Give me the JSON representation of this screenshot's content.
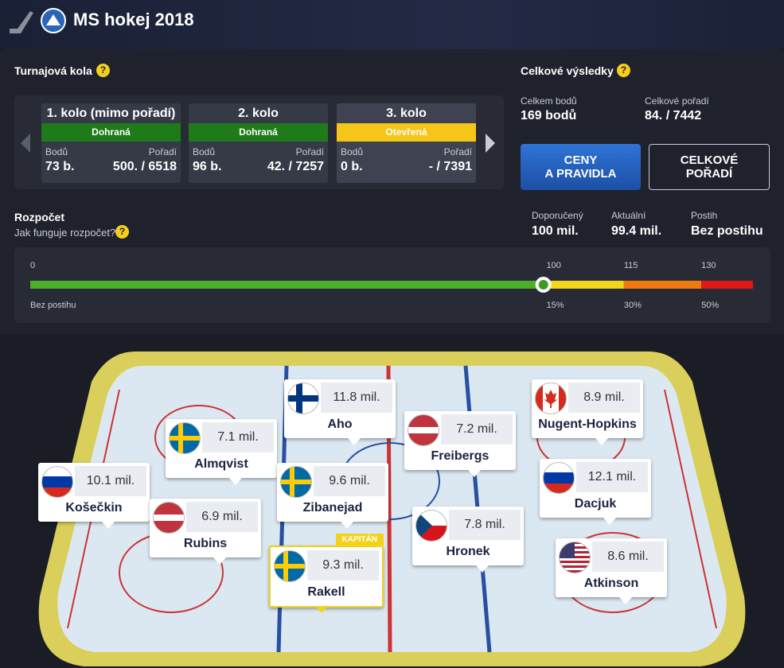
{
  "header": {
    "title": "MS hokej 2018"
  },
  "rounds": {
    "title": "Turnajová kola",
    "help": "?",
    "items": [
      {
        "name": "1. kolo (mimo pořadí)",
        "status": "Dohraná",
        "color": "#1f7a1a",
        "points_label": "Bodů",
        "points": "73 b.",
        "rank_label": "Pořadí",
        "rank": "500. / 6518"
      },
      {
        "name": "2. kolo",
        "status": "Dohraná",
        "color": "#1f7a1a",
        "points_label": "Bodů",
        "points": "96 b.",
        "rank_label": "Pořadí",
        "rank": "42. / 7257"
      },
      {
        "name": "3. kolo",
        "status": "Otevřená",
        "color": "#f5c518",
        "points_label": "Bodů",
        "points": "0 b.",
        "rank_label": "Pořadí",
        "rank": "- / 7391"
      }
    ]
  },
  "results": {
    "title": "Celkové výsledky",
    "help": "?",
    "points_label": "Celkem bodů",
    "points": "169 bodů",
    "rank_label": "Celkové pořadí",
    "rank": "84. / 7442",
    "buttons": [
      [
        "CENY",
        "A PRAVIDLA"
      ],
      [
        "CELKOVÉ",
        "POŘADÍ"
      ]
    ]
  },
  "budget": {
    "title": "Rozpočet",
    "help_text": "Jak funguje rozpočet?",
    "help": "?",
    "stats": [
      {
        "label": "Doporučený",
        "value": "100 mil."
      },
      {
        "label": "Aktuální",
        "value": "99.4 mil."
      },
      {
        "label": "Postih",
        "value": "Bez postihu"
      }
    ],
    "scale": {
      "lim": [
        0,
        140
      ],
      "ticks": [
        0,
        100,
        115,
        130
      ],
      "tick_notes": [
        "Bez postihu",
        "15%",
        "30%",
        "50%"
      ],
      "colors": [
        "#4caf2a",
        "#f2d51c",
        "#f07a10",
        "#e01818"
      ],
      "marker": 99.4
    }
  },
  "lineup": {
    "players": [
      {
        "name": "Aho",
        "price": "11.8 mil."
      },
      {
        "name": "Almqvist",
        "price": "7.1 mil."
      },
      {
        "name": "Freibergs",
        "price": "7.2 mil."
      },
      {
        "name": "Nugent-Hopkins",
        "price": "8.9 mil."
      },
      {
        "name": "Košečkin",
        "price": "10.1 mil."
      },
      {
        "name": "Zibanejad",
        "price": "9.6 mil."
      },
      {
        "name": "Dacjuk",
        "price": "12.1 mil."
      },
      {
        "name": "Rubins",
        "price": "6.9 mil."
      },
      {
        "name": "Hronek",
        "price": "7.8 mil."
      },
      {
        "name": "Rakell",
        "price": "9.3 mil.",
        "captain": "KAPITÁN"
      },
      {
        "name": "Atkinson",
        "price": "8.6 mil."
      }
    ]
  }
}
